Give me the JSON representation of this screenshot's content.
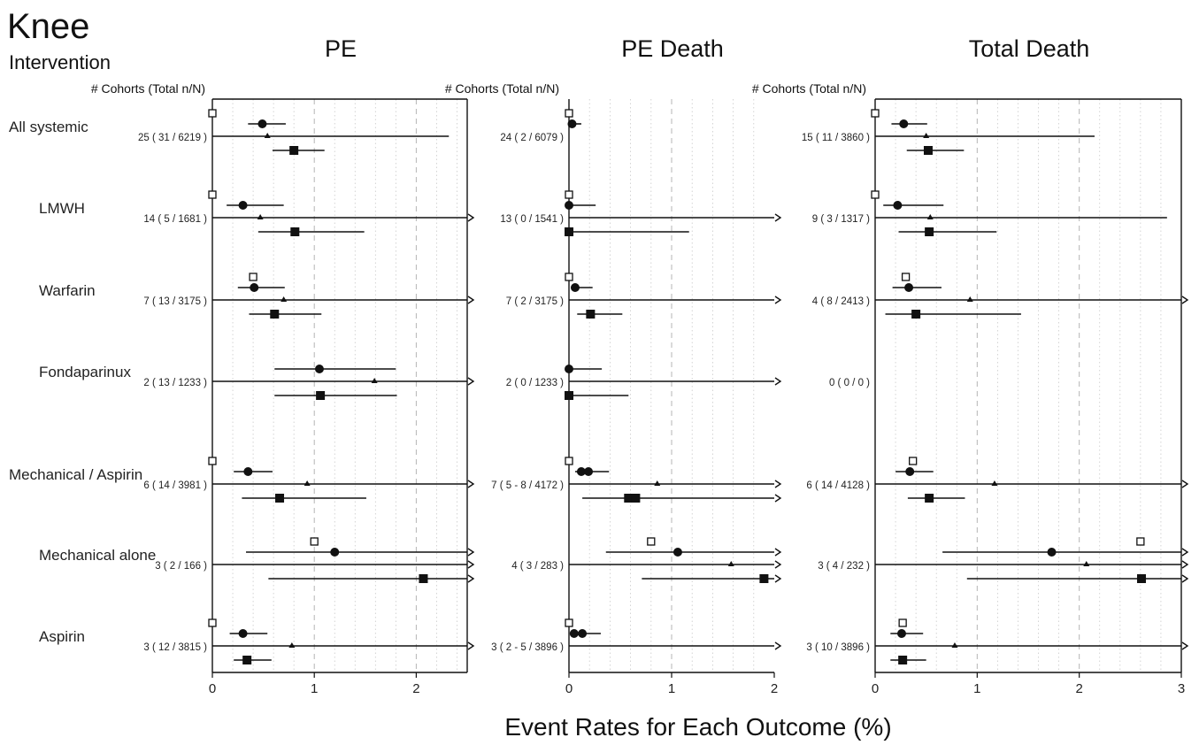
{
  "header": {
    "title": "Knee",
    "subtitle": "Intervention",
    "xlabel": "Event Rates for Each Outcome (%)",
    "cohort_header": "# Cohorts (Total n/N)"
  },
  "chart_data": [
    {
      "type": "forest",
      "title": "PE",
      "xlim": [
        0,
        2.5
      ],
      "xticks": [
        0,
        1,
        2
      ],
      "grid": "dashed at integers, dotted at 0.2 steps",
      "marker_legend": "open square = observed rate, circle = point estimate, triangle = estimate (wide interval), filled square = estimate",
      "rows": [
        {
          "intervention": "All systemic",
          "cohorts": "25 ( 31 / 6219 )",
          "open_square": 0.0,
          "circle": {
            "est": 0.49,
            "lo": 0.35,
            "hi": 0.72
          },
          "triangle": {
            "est": 0.54,
            "lo": 0.0,
            "hi": 2.32
          },
          "square": {
            "est": 0.8,
            "lo": 0.59,
            "hi": 1.1
          }
        },
        {
          "intervention": "LMWH",
          "cohorts": "14 ( 5 / 1681 )",
          "open_square": 0.0,
          "circle": {
            "est": 0.3,
            "lo": 0.14,
            "hi": 0.7
          },
          "triangle": {
            "est": 0.47,
            "lo": 0.0,
            "hi": 2.5,
            "open_right": true
          },
          "square": {
            "est": 0.81,
            "lo": 0.45,
            "hi": 1.49
          }
        },
        {
          "intervention": "Warfarin",
          "cohorts": "7 ( 13 / 3175 )",
          "open_square": 0.4,
          "circle": {
            "est": 0.41,
            "lo": 0.25,
            "hi": 0.71
          },
          "triangle": {
            "est": 0.7,
            "lo": 0.0,
            "hi": 2.5,
            "open_right": true
          },
          "square": {
            "est": 0.61,
            "lo": 0.36,
            "hi": 1.07
          }
        },
        {
          "intervention": "Fondaparinux",
          "cohorts": "2 ( 13 / 1233 )",
          "open_square": null,
          "circle": {
            "est": 1.05,
            "lo": 0.61,
            "hi": 1.8
          },
          "triangle": {
            "est": 1.59,
            "lo": 0.0,
            "hi": 2.5,
            "open_right": true
          },
          "square": {
            "est": 1.06,
            "lo": 0.61,
            "hi": 1.81
          }
        },
        {
          "intervention": "Mechanical / Aspirin",
          "cohorts": "6 ( 14 / 3981 )",
          "open_square": 0.0,
          "circle": {
            "est": 0.35,
            "lo": 0.21,
            "hi": 0.59
          },
          "triangle": {
            "est": 0.93,
            "lo": 0.0,
            "hi": 2.5,
            "open_right": true
          },
          "square": {
            "est": 0.66,
            "lo": 0.29,
            "hi": 1.51
          }
        },
        {
          "intervention": "Mechanical alone",
          "cohorts": "3 ( 2 / 166 )",
          "open_square": 1.0,
          "circle": {
            "est": 1.2,
            "lo": 0.33,
            "hi": 2.5,
            "open_right": true
          },
          "triangle": {
            "est": null,
            "lo": 0.0,
            "hi": 2.5,
            "open_right": true
          },
          "square": {
            "est": 2.07,
            "lo": 0.55,
            "hi": 2.5,
            "open_right": true
          }
        },
        {
          "intervention": "Aspirin",
          "cohorts": "3 ( 12 / 3815 )",
          "open_square": 0.0,
          "circle": {
            "est": 0.3,
            "lo": 0.17,
            "hi": 0.54
          },
          "triangle": {
            "est": 0.78,
            "lo": 0.0,
            "hi": 2.5,
            "open_right": true
          },
          "square": {
            "est": 0.34,
            "lo": 0.21,
            "hi": 0.58
          }
        }
      ]
    },
    {
      "type": "forest",
      "title": "PE Death",
      "xlim": [
        0,
        2.0
      ],
      "xticks": [
        0,
        1,
        2
      ],
      "grid": "dashed at integers, dotted at 0.2 steps",
      "rows": [
        {
          "intervention": "All systemic",
          "cohorts": "24 ( 2 / 6079 )",
          "open_square": 0.0,
          "circle": {
            "est": 0.03,
            "lo": 0.0,
            "hi": 0.12
          },
          "triangle": null,
          "square": null
        },
        {
          "intervention": "LMWH",
          "cohorts": "13 ( 0 / 1541 )",
          "open_square": 0.0,
          "circle": {
            "est": 0.0,
            "lo": 0.0,
            "hi": 0.26
          },
          "triangle": {
            "est": null,
            "lo": 0.0,
            "hi": 2.0,
            "open_right": true
          },
          "square": {
            "est": 0.0,
            "lo": 0.0,
            "hi": 1.17
          }
        },
        {
          "intervention": "Warfarin",
          "cohorts": "7 ( 2 / 3175 )",
          "open_square": 0.0,
          "circle": {
            "est": 0.06,
            "lo": 0.02,
            "hi": 0.23
          },
          "triangle": {
            "est": null,
            "lo": 0.0,
            "hi": 2.0,
            "open_right": true
          },
          "square": {
            "est": 0.21,
            "lo": 0.08,
            "hi": 0.52
          }
        },
        {
          "intervention": "Fondaparinux",
          "cohorts": "2 ( 0 / 1233 )",
          "open_square": null,
          "circle": {
            "est": 0.0,
            "lo": 0.0,
            "hi": 0.32
          },
          "triangle": {
            "est": null,
            "lo": 0.0,
            "hi": 2.0,
            "open_right": true
          },
          "square": {
            "est": 0.0,
            "lo": 0.0,
            "hi": 0.58
          }
        },
        {
          "intervention": "Mechanical / Aspirin",
          "cohorts": "7 ( 5 - 8 / 4172 )",
          "open_square": 0.0,
          "circle": {
            "est": 0.12,
            "lo": 0.06,
            "hi": 0.39,
            "est2": 0.19
          },
          "triangle": {
            "est": 0.86,
            "lo": 0.0,
            "hi": 2.0,
            "open_right": true
          },
          "square": {
            "est": 0.58,
            "lo": 0.13,
            "hi": 2.0,
            "open_right": true,
            "est2": 0.65
          }
        },
        {
          "intervention": "Mechanical alone",
          "cohorts": "4 ( 3 / 283 )",
          "open_square": 0.8,
          "circle": {
            "est": 1.06,
            "lo": 0.36,
            "hi": 2.0,
            "open_right": true
          },
          "triangle": {
            "est": 1.58,
            "lo": 0.0,
            "hi": 2.0,
            "open_right": true
          },
          "square": {
            "est": 1.9,
            "lo": 0.71,
            "hi": 2.0,
            "open_right": true
          }
        },
        {
          "intervention": "Aspirin",
          "cohorts": "3 ( 2 - 5 / 3896 )",
          "open_square": 0.0,
          "circle": {
            "est": 0.05,
            "lo": 0.02,
            "hi": 0.31,
            "est2": 0.13
          },
          "triangle": {
            "est": null,
            "lo": 0.0,
            "hi": 2.0,
            "open_right": true
          },
          "square": null
        }
      ]
    },
    {
      "type": "forest",
      "title": "Total Death",
      "xlim": [
        0,
        3.0
      ],
      "xticks": [
        0,
        1,
        2,
        3
      ],
      "grid": "dashed at integers, dotted at 0.2 steps",
      "rows": [
        {
          "intervention": "All systemic",
          "cohorts": "15 ( 11 / 3860 )",
          "open_square": 0.0,
          "circle": {
            "est": 0.28,
            "lo": 0.16,
            "hi": 0.51
          },
          "triangle": {
            "est": 0.5,
            "lo": 0.0,
            "hi": 2.15
          },
          "square": {
            "est": 0.52,
            "lo": 0.31,
            "hi": 0.87
          }
        },
        {
          "intervention": "LMWH",
          "cohorts": "9 ( 3 / 1317 )",
          "open_square": 0.0,
          "circle": {
            "est": 0.22,
            "lo": 0.08,
            "hi": 0.67
          },
          "triangle": {
            "est": 0.54,
            "lo": 0.0,
            "hi": 2.86
          },
          "square": {
            "est": 0.53,
            "lo": 0.23,
            "hi": 1.19
          }
        },
        {
          "intervention": "Warfarin",
          "cohorts": "4 ( 8 / 2413 )",
          "open_square": 0.3,
          "circle": {
            "est": 0.33,
            "lo": 0.17,
            "hi": 0.65
          },
          "triangle": {
            "est": 0.93,
            "lo": 0.0,
            "hi": 3.0,
            "open_right": true
          },
          "square": {
            "est": 0.4,
            "lo": 0.1,
            "hi": 1.43
          }
        },
        {
          "intervention": "Fondaparinux",
          "cohorts": "0 ( 0 / 0 )",
          "open_square": null,
          "circle": null,
          "triangle": null,
          "square": null
        },
        {
          "intervention": "Mechanical / Aspirin",
          "cohorts": "6 ( 14 / 4128 )",
          "open_square": 0.37,
          "circle": {
            "est": 0.34,
            "lo": 0.2,
            "hi": 0.57
          },
          "triangle": {
            "est": 1.17,
            "lo": 0.0,
            "hi": 3.0,
            "open_right": true
          },
          "square": {
            "est": 0.53,
            "lo": 0.32,
            "hi": 0.88
          }
        },
        {
          "intervention": "Mechanical alone",
          "cohorts": "3 ( 4 / 232 )",
          "open_square": 2.6,
          "circle": {
            "est": 1.73,
            "lo": 0.66,
            "hi": 3.0,
            "open_right": true
          },
          "triangle": {
            "est": 2.07,
            "lo": 0.0,
            "hi": 3.0,
            "open_right": true
          },
          "square": {
            "est": 2.61,
            "lo": 0.9,
            "hi": 3.0,
            "open_right": true
          }
        },
        {
          "intervention": "Aspirin",
          "cohorts": "3 ( 10 / 3896 )",
          "open_square": 0.27,
          "circle": {
            "est": 0.26,
            "lo": 0.15,
            "hi": 0.47
          },
          "triangle": {
            "est": 0.78,
            "lo": 0.0,
            "hi": 3.0,
            "open_right": true
          },
          "square": {
            "est": 0.27,
            "lo": 0.15,
            "hi": 0.5
          }
        }
      ]
    }
  ]
}
